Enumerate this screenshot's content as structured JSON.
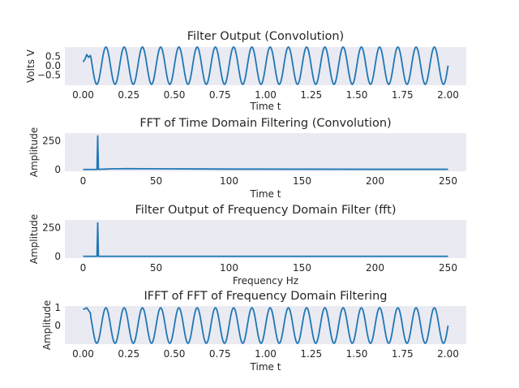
{
  "colors": {
    "background": "#EAEAF2",
    "line": "#1F77B4",
    "grid": "#FFFFFF"
  },
  "chart_data": [
    {
      "type": "line",
      "title": "Filter Output (Convolution)",
      "xlabel": "Time t",
      "ylabel": "Volts V",
      "xlim": [
        -0.1,
        2.1
      ],
      "ylim": [
        -1.05,
        1.0
      ],
      "xticks": [
        0.0,
        0.25,
        0.5,
        0.75,
        1.0,
        1.25,
        1.5,
        1.75,
        2.0
      ],
      "xtick_labels": [
        "0.00",
        "0.25",
        "0.50",
        "0.75",
        "1.00",
        "1.25",
        "1.50",
        "1.75",
        "2.00"
      ],
      "yticks": [
        0.5,
        0.0,
        -0.5
      ],
      "ytick_labels": [
        "0.5",
        "0.0",
        "−0.5"
      ],
      "grid": false,
      "series": [
        {
          "signal": "sine",
          "frequency_hz": 10,
          "amplitude": 1.0,
          "x_start": 0.0,
          "x_end": 2.0,
          "startup": [
            [
              0.0,
              0.2
            ],
            [
              0.01,
              0.35
            ],
            [
              0.02,
              0.6
            ],
            [
              0.03,
              0.45
            ],
            [
              0.04,
              0.55
            ]
          ]
        }
      ]
    },
    {
      "type": "line",
      "title": "FFT of Time Domain Filtering (Convolution)",
      "xlabel": "Time t",
      "ylabel": "Amplitude",
      "xlim": [
        -12.5,
        262.5
      ],
      "ylim": [
        -15,
        315
      ],
      "xticks": [
        0,
        50,
        100,
        150,
        200,
        250
      ],
      "xtick_labels": [
        "0",
        "50",
        "100",
        "150",
        "200",
        "250"
      ],
      "yticks": [
        250,
        0
      ],
      "ytick_labels": [
        "250",
        "0"
      ],
      "grid": false,
      "series": [
        {
          "points": [
            [
              0,
              1
            ],
            [
              9.5,
              1
            ],
            [
              10,
              290
            ],
            [
              10.5,
              1
            ],
            [
              11,
              2
            ],
            [
              15,
              4
            ],
            [
              20,
              6
            ],
            [
              30,
              8
            ],
            [
              40,
              7
            ],
            [
              60,
              6
            ],
            [
              100,
              4
            ],
            [
              150,
              3
            ],
            [
              200,
              2
            ],
            [
              250,
              2
            ]
          ]
        }
      ]
    },
    {
      "type": "line",
      "title": "Filter Output of Frequency Domain Filter (fft)",
      "xlabel": "Frequency Hz",
      "ylabel": "Amplitude",
      "xlim": [
        -12.5,
        262.5
      ],
      "ylim": [
        -15,
        315
      ],
      "xticks": [
        0,
        50,
        100,
        150,
        200,
        250
      ],
      "xtick_labels": [
        "0",
        "50",
        "100",
        "150",
        "200",
        "250"
      ],
      "yticks": [
        250,
        0
      ],
      "ytick_labels": [
        "250",
        "0"
      ],
      "grid": false,
      "series": [
        {
          "points": [
            [
              0,
              1
            ],
            [
              9.5,
              1
            ],
            [
              10,
              290
            ],
            [
              10.5,
              1
            ],
            [
              11,
              1
            ],
            [
              100,
              1
            ],
            [
              250,
              1
            ]
          ]
        }
      ]
    },
    {
      "type": "line",
      "title": "IFFT of FFT of Frequency Domain Filtering",
      "xlabel": "Time t",
      "ylabel": "Amplitude",
      "xlim": [
        -0.1,
        2.1
      ],
      "ylim": [
        -1.05,
        1.1
      ],
      "xticks": [
        0.0,
        0.25,
        0.5,
        0.75,
        1.0,
        1.25,
        1.5,
        1.75,
        2.0
      ],
      "xtick_labels": [
        "0.00",
        "0.25",
        "0.50",
        "0.75",
        "1.00",
        "1.25",
        "1.50",
        "1.75",
        "2.00"
      ],
      "yticks": [
        1,
        0
      ],
      "ytick_labels": [
        "1",
        "0"
      ],
      "grid": false,
      "series": [
        {
          "signal": "sine",
          "frequency_hz": 10,
          "amplitude": 1.0,
          "x_start": 0.0,
          "x_end": 2.0,
          "startup": [
            [
              0.0,
              0.9
            ],
            [
              0.01,
              0.95
            ],
            [
              0.02,
              1.0
            ],
            [
              0.03,
              0.85
            ],
            [
              0.04,
              0.7
            ]
          ]
        }
      ]
    }
  ]
}
